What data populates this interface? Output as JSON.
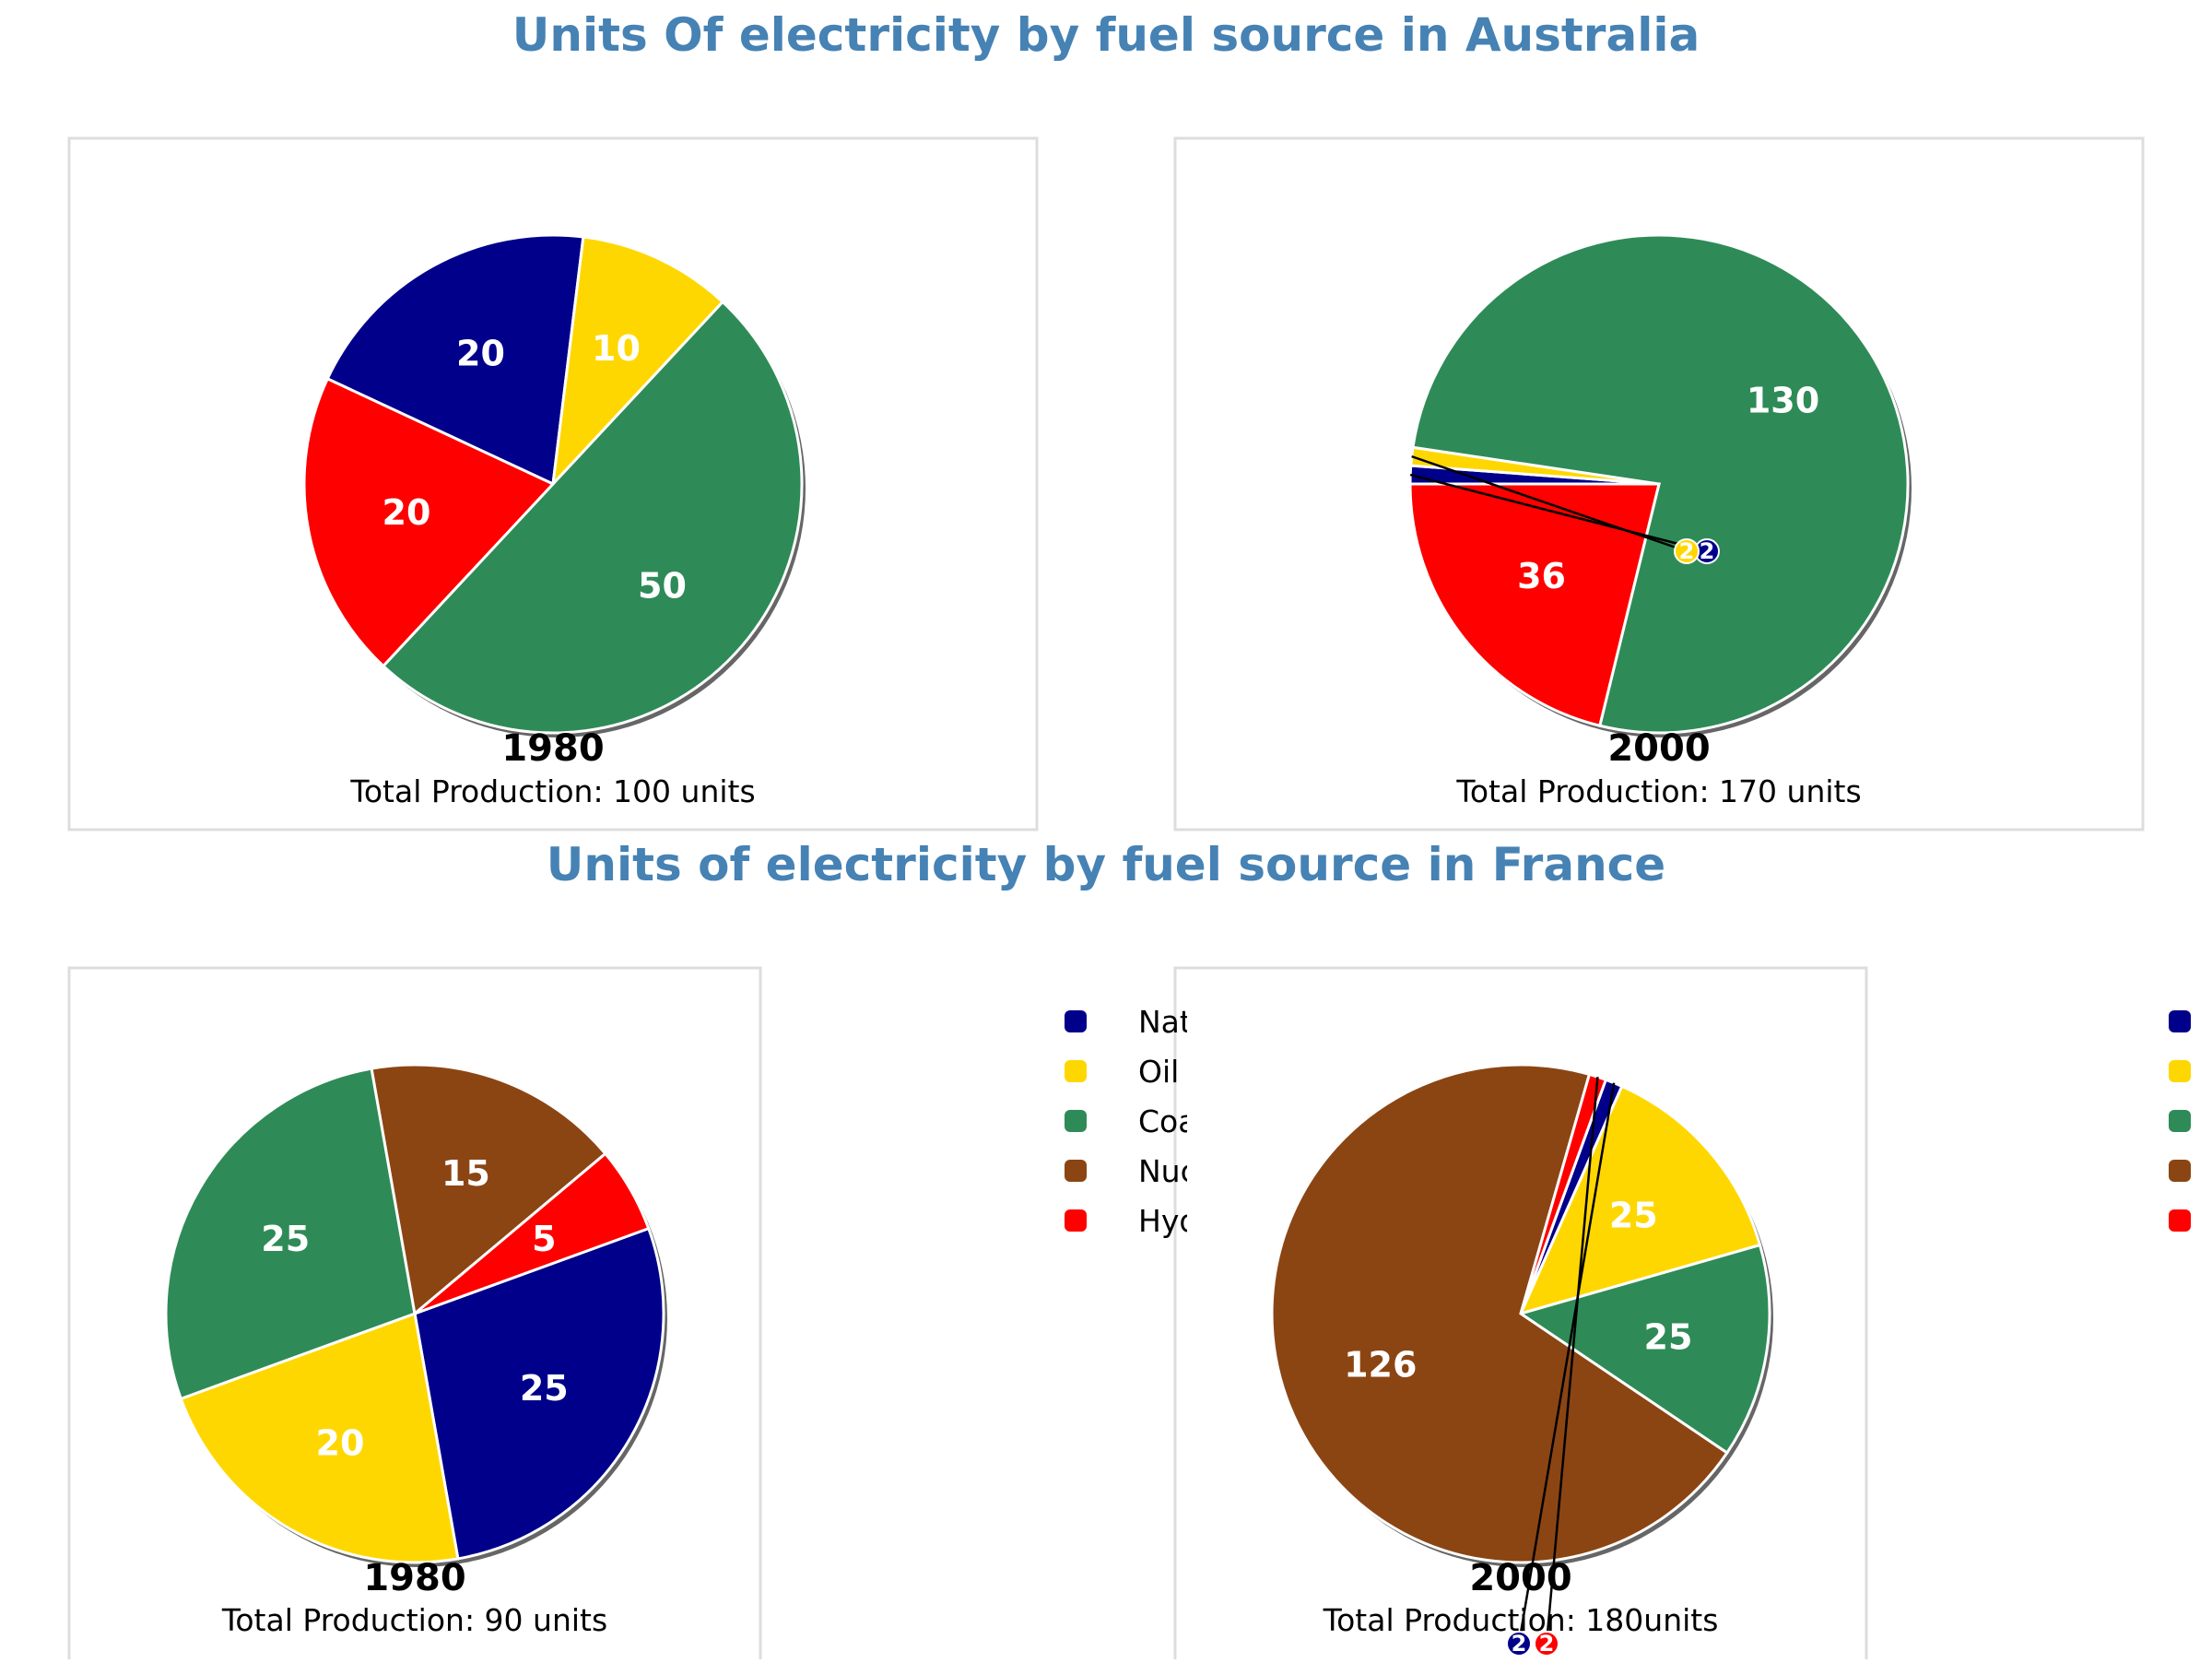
{
  "chart_data": [
    {
      "type": "pie",
      "country": "Australia",
      "title": "Units Of electricity by fuel source in Australia",
      "year": "1980",
      "caption": "Total Production: 100 units",
      "slices": [
        {
          "source": "Natural Gas",
          "value": 20,
          "label": "20",
          "color": "#00008B"
        },
        {
          "source": "Oil",
          "value": 10,
          "label": "10",
          "color": "#FFD700"
        },
        {
          "source": "Coal",
          "value": 50,
          "label": "50",
          "color": "#2E8B57"
        },
        {
          "source": "Hydro",
          "value": 20,
          "label": "20",
          "color": "#FF0000"
        }
      ]
    },
    {
      "type": "pie",
      "country": "Australia",
      "year": "2000",
      "caption": "Total Production: 170 units",
      "slices": [
        {
          "source": "Natural Gas",
          "value": 2,
          "label": "2",
          "color": "#00008B"
        },
        {
          "source": "Oil",
          "value": 2,
          "label": "2",
          "color": "#FFD700"
        },
        {
          "source": "Coal",
          "value": 130,
          "label": "130",
          "color": "#2E8B57"
        },
        {
          "source": "Hydro",
          "value": 36,
          "label": "36",
          "color": "#FF0000"
        }
      ]
    },
    {
      "type": "pie",
      "country": "France",
      "title": "Units of electricity by fuel source in France",
      "year": "1980",
      "caption": "Total Production: 90 units",
      "slices": [
        {
          "source": "Natural Gas",
          "value": 25,
          "label": "25",
          "color": "#00008B"
        },
        {
          "source": "Oil",
          "value": 20,
          "label": "20",
          "color": "#FFD700"
        },
        {
          "source": "Coal",
          "value": 25,
          "label": "25",
          "color": "#2E8B57"
        },
        {
          "source": "Nuclear",
          "value": 15,
          "label": "15",
          "color": "#8B4513"
        },
        {
          "source": "Hydro",
          "value": 5,
          "label": "5",
          "color": "#FF0000"
        }
      ]
    },
    {
      "type": "pie",
      "country": "France",
      "year": "2000",
      "caption": "Total Production: 180units",
      "slices": [
        {
          "source": "Natural Gas",
          "value": 2,
          "label": "2",
          "color": "#00008B"
        },
        {
          "source": "Oil",
          "value": 25,
          "label": "25",
          "color": "#FFD700"
        },
        {
          "source": "Coal",
          "value": 25,
          "label": "25",
          "color": "#2E8B57"
        },
        {
          "source": "Nuclear",
          "value": 126,
          "label": "126",
          "color": "#8B4513"
        },
        {
          "source": "Hydro",
          "value": 2,
          "label": "2",
          "color": "#FF0000"
        }
      ]
    }
  ],
  "legend": {
    "position": "right",
    "entries": [
      {
        "label": "Natural Gas",
        "color": "#00008B"
      },
      {
        "label": "Oil",
        "color": "#FFD700"
      },
      {
        "label": "Coal",
        "color": "#2E8B57"
      },
      {
        "label": "Nuclear",
        "color": "#8B4513"
      },
      {
        "label": "Hydro",
        "color": "#FF0000"
      }
    ]
  },
  "colors": {
    "title": "#4682B4",
    "frame": "#DDDDDD",
    "slice_edge": "#FFFFFF",
    "data_label": "#FFFFFF"
  }
}
